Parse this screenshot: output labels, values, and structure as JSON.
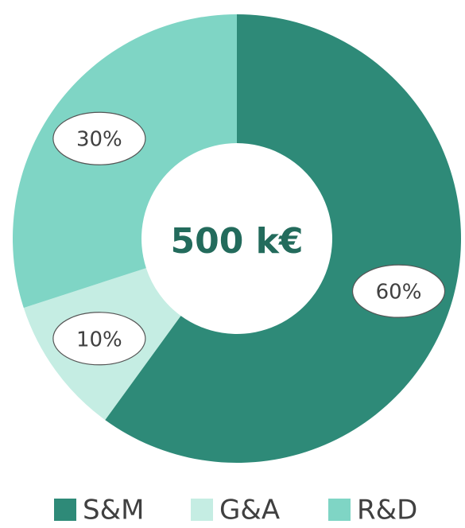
{
  "chart_data": {
    "type": "donut",
    "center_text": "500 k€",
    "categories": [
      "S&M",
      "G&A",
      "R&D"
    ],
    "values": [
      60,
      10,
      30
    ],
    "value_labels": [
      "60%",
      "10%",
      "30%"
    ],
    "colors": [
      "#2e8a78",
      "#c5ede3",
      "#7fd5c5"
    ],
    "legend": "bottom"
  }
}
